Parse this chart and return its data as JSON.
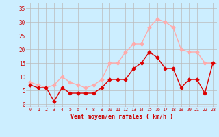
{
  "x": [
    0,
    1,
    2,
    3,
    4,
    5,
    6,
    7,
    8,
    9,
    10,
    11,
    12,
    13,
    14,
    15,
    16,
    17,
    18,
    19,
    20,
    21,
    22,
    23
  ],
  "wind_avg": [
    7,
    6,
    6,
    1,
    6,
    4,
    4,
    4,
    4,
    6,
    9,
    9,
    9,
    13,
    15,
    19,
    17,
    13,
    13,
    6,
    9,
    9,
    4,
    15
  ],
  "wind_gust": [
    8,
    7,
    6,
    7,
    10,
    8,
    7,
    6,
    7,
    9,
    15,
    15,
    19,
    22,
    22,
    28,
    31,
    30,
    28,
    20,
    19,
    19,
    15,
    15
  ],
  "avg_color": "#dd0000",
  "gust_color": "#ffaaaa",
  "bg_color": "#cceeff",
  "grid_color": "#bbbbbb",
  "xlabel": "Vent moyen/en rafales ( km/h )",
  "xlabel_color": "#cc0000",
  "ylabel_ticks": [
    0,
    5,
    10,
    15,
    20,
    25,
    30,
    35
  ],
  "ylim": [
    -1,
    37
  ],
  "xlim": [
    -0.5,
    23.5
  ],
  "tick_color": "#cc0000",
  "line_width": 1.0,
  "marker": "D",
  "marker_size": 2.5
}
